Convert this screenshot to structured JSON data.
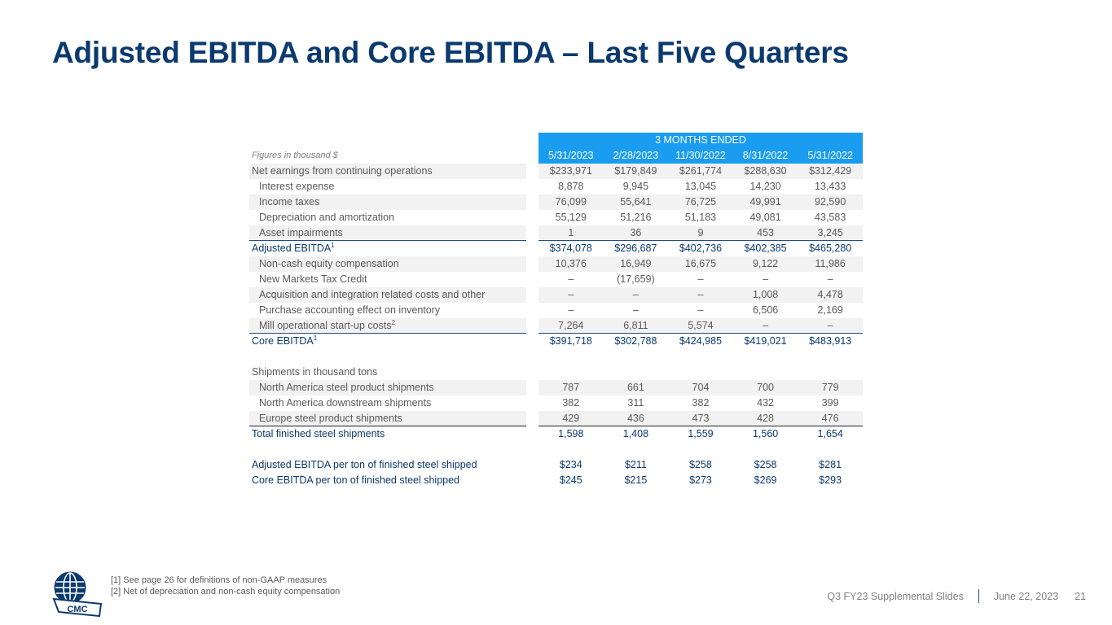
{
  "title": "Adjusted EBITDA and Core EBITDA – Last Five Quarters",
  "table": {
    "period_header": "3 MONTHS ENDED",
    "units_label": "Figures in thousand $",
    "columns": [
      "5/31/2023",
      "2/28/2023",
      "11/30/2022",
      "8/31/2022",
      "5/31/2022"
    ],
    "rows": [
      {
        "label": "Net earnings from continuing operations",
        "values": [
          "$233,971",
          "$179,849",
          "$261,774",
          "$288,630",
          "$312,429"
        ]
      },
      {
        "label": "Interest expense",
        "values": [
          "8,878",
          "9,945",
          "13,045",
          "14,230",
          "13,433"
        ]
      },
      {
        "label": "Income taxes",
        "values": [
          "76,099",
          "55,641",
          "76,725",
          "49,991",
          "92,590"
        ]
      },
      {
        "label": "Depreciation and amortization",
        "values": [
          "55,129",
          "51,216",
          "51,183",
          "49,081",
          "43,583"
        ]
      },
      {
        "label": "Asset impairments",
        "values": [
          "1",
          "36",
          "9",
          "453",
          "3,245"
        ]
      },
      {
        "label": "Adjusted EBITDA",
        "sup": "1",
        "values": [
          "$374,078",
          "$296,687",
          "$402,736",
          "$402,385",
          "$465,280"
        ]
      },
      {
        "label": "Non-cash equity compensation",
        "values": [
          "10,376",
          "16,949",
          "16,675",
          "9,122",
          "11,986"
        ]
      },
      {
        "label": "New Markets Tax Credit",
        "values": [
          "–",
          "(17,659)",
          "–",
          "–",
          "–"
        ]
      },
      {
        "label": "Acquisition and integration related costs and other",
        "values": [
          "–",
          "–",
          "–",
          "1,008",
          "4,478"
        ]
      },
      {
        "label": "Purchase accounting effect on inventory",
        "values": [
          "–",
          "–",
          "–",
          "6,506",
          "2,169"
        ]
      },
      {
        "label": "Mill operational start-up costs",
        "sup": "2",
        "values": [
          "7,264",
          "6,811",
          "5,574",
          "–",
          "–"
        ]
      },
      {
        "label": "Core EBITDA",
        "sup": "1",
        "values": [
          "$391,718",
          "$302,788",
          "$424,985",
          "$419,021",
          "$483,913"
        ]
      },
      {
        "label": "Shipments in thousand tons",
        "values": [
          "",
          "",
          "",
          "",
          ""
        ]
      },
      {
        "label": "North America steel product shipments",
        "values": [
          "787",
          "661",
          "704",
          "700",
          "779"
        ]
      },
      {
        "label": "North America downstream shipments",
        "values": [
          "382",
          "311",
          "382",
          "432",
          "399"
        ]
      },
      {
        "label": "Europe steel product shipments",
        "values": [
          "429",
          "436",
          "473",
          "428",
          "476"
        ]
      },
      {
        "label": "Total finished steel shipments",
        "values": [
          "1,598",
          "1,408",
          "1,559",
          "1,560",
          "1,654"
        ]
      },
      {
        "label": "Adjusted EBITDA per ton of finished steel shipped",
        "values": [
          "$234",
          "$211",
          "$258",
          "$258",
          "$281"
        ]
      },
      {
        "label": "Core EBITDA per ton of finished steel shipped",
        "values": [
          "$245",
          "$215",
          "$273",
          "$269",
          "$293"
        ]
      }
    ]
  },
  "footnotes": [
    "[1] See page 26 for definitions of non-GAAP measures",
    "[2] Net of depreciation and non-cash equity compensation"
  ],
  "logo_text": "CMC",
  "footer": {
    "deck": "Q3 FY23 Supplemental Slides",
    "date": "June 22, 2023",
    "page": "21"
  },
  "colors": {
    "title": "#0b3a6e",
    "header_bg": "#1a9cf0",
    "row_shade": "#f2f2f2",
    "rule": "#1f4e8c"
  }
}
